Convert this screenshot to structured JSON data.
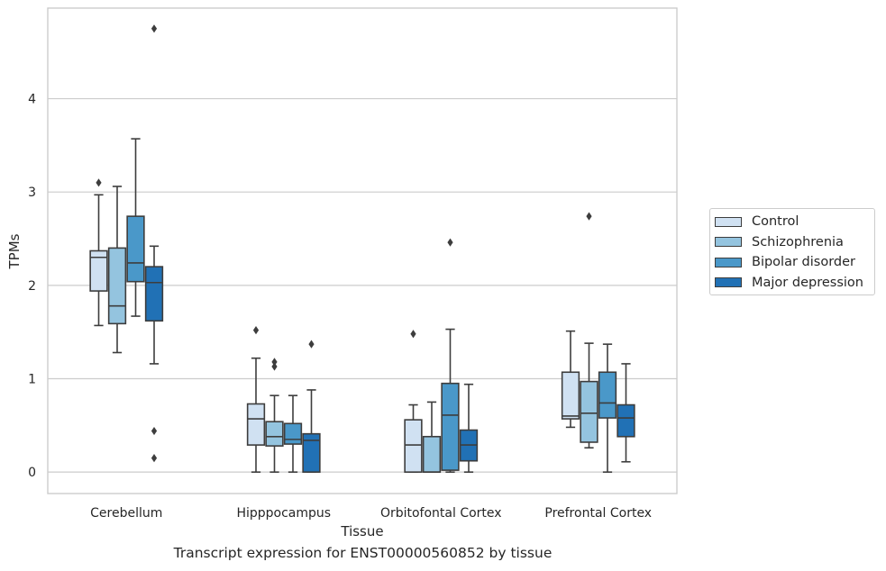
{
  "chart_data": {
    "type": "box",
    "xlabel": "Tissue",
    "ylabel": "TPMs",
    "caption": "Transcript expression for ENST00000560852 by tissue",
    "ylim": [
      -0.23,
      4.97
    ],
    "yticks": [
      0,
      1,
      2,
      3,
      4
    ],
    "grid": "horizontal",
    "legend_position": "right",
    "categories": [
      "Cerebellum",
      "Hipppocampus",
      "Orbitofontal Cortex",
      "Prefrontal Cortex"
    ],
    "series": [
      {
        "name": "Control",
        "color": "#d0e1f2",
        "boxes": [
          {
            "whislo": 1.57,
            "q1": 1.94,
            "med": 2.3,
            "q3": 2.37,
            "whishi": 2.97,
            "fliers": [
              3.1
            ]
          },
          {
            "whislo": 0.0,
            "q1": 0.29,
            "med": 0.57,
            "q3": 0.73,
            "whishi": 1.22,
            "fliers": [
              1.52
            ]
          },
          {
            "whislo": 0.0,
            "q1": 0.0,
            "med": 0.29,
            "q3": 0.56,
            "whishi": 0.72,
            "fliers": [
              1.48
            ]
          },
          {
            "whislo": 0.48,
            "q1": 0.57,
            "med": 0.6,
            "q3": 1.07,
            "whishi": 1.51,
            "fliers": []
          }
        ]
      },
      {
        "name": "Schizophrenia",
        "color": "#94c4df",
        "boxes": [
          {
            "whislo": 1.28,
            "q1": 1.59,
            "med": 1.78,
            "q3": 2.4,
            "whishi": 3.06,
            "fliers": []
          },
          {
            "whislo": 0.0,
            "q1": 0.28,
            "med": 0.38,
            "q3": 0.54,
            "whishi": 0.82,
            "fliers": [
              1.13,
              1.18
            ]
          },
          {
            "whislo": 0.0,
            "q1": 0.0,
            "med": 0.0,
            "q3": 0.38,
            "whishi": 0.75,
            "fliers": []
          },
          {
            "whislo": 0.26,
            "q1": 0.32,
            "med": 0.63,
            "q3": 0.97,
            "whishi": 1.38,
            "fliers": [
              2.74
            ]
          }
        ]
      },
      {
        "name": "Bipolar disorder",
        "color": "#4a98c9",
        "boxes": [
          {
            "whislo": 1.67,
            "q1": 2.04,
            "med": 2.24,
            "q3": 2.74,
            "whishi": 3.57,
            "fliers": []
          },
          {
            "whislo": 0.0,
            "q1": 0.3,
            "med": 0.35,
            "q3": 0.52,
            "whishi": 0.82,
            "fliers": []
          },
          {
            "whislo": 0.0,
            "q1": 0.02,
            "med": 0.61,
            "q3": 0.95,
            "whishi": 1.53,
            "fliers": [
              2.46
            ]
          },
          {
            "whislo": 0.0,
            "q1": 0.58,
            "med": 0.74,
            "q3": 1.07,
            "whishi": 1.37,
            "fliers": []
          }
        ]
      },
      {
        "name": "Major depression",
        "color": "#2171b5",
        "boxes": [
          {
            "whislo": 1.16,
            "q1": 1.62,
            "med": 2.03,
            "q3": 2.2,
            "whishi": 2.42,
            "fliers": [
              4.75,
              0.44,
              0.15
            ]
          },
          {
            "whislo": 0.0,
            "q1": 0.0,
            "med": 0.34,
            "q3": 0.41,
            "whishi": 0.88,
            "fliers": [
              1.37
            ]
          },
          {
            "whislo": 0.0,
            "q1": 0.12,
            "med": 0.29,
            "q3": 0.45,
            "whishi": 0.94,
            "fliers": []
          },
          {
            "whislo": 0.11,
            "q1": 0.38,
            "med": 0.58,
            "q3": 0.72,
            "whishi": 1.16,
            "fliers": []
          }
        ]
      }
    ]
  }
}
